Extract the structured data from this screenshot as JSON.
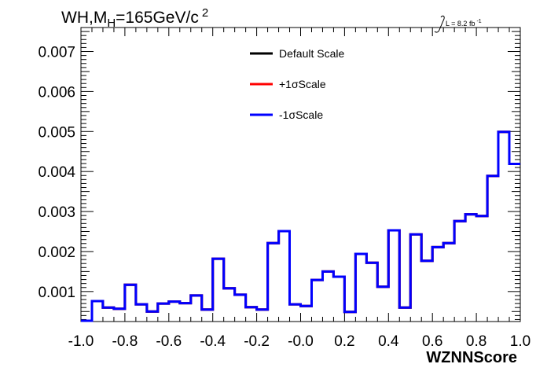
{
  "chart_data": {
    "type": "line",
    "title": "WH,M",
    "title_sub": "H",
    "title_rest": "=165GeV/c",
    "title_sup": "2",
    "lumi": "L = 8.2 fb",
    "lumi_sup": "-1",
    "xlabel": "WZNNScore",
    "ylabel": "",
    "xlim": [
      -1.0,
      1.0
    ],
    "ylim": [
      0.00025,
      0.0076
    ],
    "x_ticks": [
      -1.0,
      -0.8,
      -0.6,
      -0.4,
      -0.2,
      -0.0,
      0.2,
      0.4,
      0.6,
      0.8,
      1.0
    ],
    "x_tick_labels": [
      "-1.0",
      "-0.8",
      "-0.6",
      "-0.4",
      "-0.2",
      "-0.0",
      "0.2",
      "0.4",
      "0.6",
      "0.8",
      "1.0"
    ],
    "y_ticks": [
      0.001,
      0.002,
      0.003,
      0.004,
      0.005,
      0.006,
      0.007
    ],
    "y_tick_labels": [
      "0.001",
      "0.002",
      "0.003",
      "0.004",
      "0.005",
      "0.006",
      "0.007"
    ],
    "bin_edges": [
      -1.0,
      -0.95,
      -0.9,
      -0.85,
      -0.8,
      -0.75,
      -0.7,
      -0.65,
      -0.6,
      -0.55,
      -0.5,
      -0.45,
      -0.4,
      -0.35,
      -0.3,
      -0.25,
      -0.2,
      -0.15,
      -0.1,
      -0.05,
      0.0,
      0.05,
      0.1,
      0.15,
      0.2,
      0.25,
      0.3,
      0.35,
      0.4,
      0.45,
      0.5,
      0.55,
      0.6,
      0.65,
      0.7,
      0.75,
      0.8,
      0.85,
      0.9,
      0.95,
      1.0
    ],
    "series": [
      {
        "name": "Default Scale",
        "color": "#000000",
        "values": [
          0.00027,
          0.00076,
          0.0006,
          0.00057,
          0.00117,
          0.00068,
          0.0005,
          0.0007,
          0.00075,
          0.00071,
          0.0009,
          0.00055,
          0.00182,
          0.00108,
          0.00092,
          0.00061,
          0.00055,
          0.00221,
          0.00251,
          0.00068,
          0.00064,
          0.00129,
          0.0015,
          0.00137,
          0.00049,
          0.00194,
          0.00172,
          0.00112,
          0.00253,
          0.0006,
          0.00243,
          0.00177,
          0.00211,
          0.00221,
          0.00276,
          0.00293,
          0.00289,
          0.00389,
          0.00499,
          0.00419
        ]
      },
      {
        "name": "+1σScale",
        "color": "#ff0000",
        "values": [
          0.00027,
          0.00076,
          0.0006,
          0.00057,
          0.00117,
          0.00068,
          0.0005,
          0.0007,
          0.00075,
          0.00071,
          0.0009,
          0.00055,
          0.00182,
          0.00108,
          0.00092,
          0.00061,
          0.00055,
          0.00221,
          0.00251,
          0.00068,
          0.00064,
          0.00129,
          0.0015,
          0.00137,
          0.00049,
          0.00194,
          0.00172,
          0.00112,
          0.00253,
          0.0006,
          0.00243,
          0.00177,
          0.00211,
          0.00221,
          0.00276,
          0.00293,
          0.00289,
          0.00389,
          0.00499,
          0.00419
        ]
      },
      {
        "name": "-1σScale",
        "color": "#0000ff",
        "values": [
          0.00027,
          0.00076,
          0.0006,
          0.00057,
          0.00117,
          0.00068,
          0.0005,
          0.0007,
          0.00075,
          0.00071,
          0.0009,
          0.00055,
          0.00182,
          0.00108,
          0.00092,
          0.00061,
          0.00055,
          0.00221,
          0.00251,
          0.00068,
          0.00064,
          0.00129,
          0.0015,
          0.00137,
          0.00049,
          0.00194,
          0.00172,
          0.00112,
          0.00253,
          0.0006,
          0.00243,
          0.00177,
          0.00211,
          0.00221,
          0.00276,
          0.00293,
          0.00289,
          0.00389,
          0.00499,
          0.00419
        ]
      }
    ],
    "legend": [
      {
        "label": "Default Scale",
        "color": "#000000"
      },
      {
        "label": "+1σScale",
        "color": "#ff0000"
      },
      {
        "label": "-1σScale",
        "color": "#0000ff"
      }
    ],
    "legend_position": "top-center",
    "grid": false
  }
}
